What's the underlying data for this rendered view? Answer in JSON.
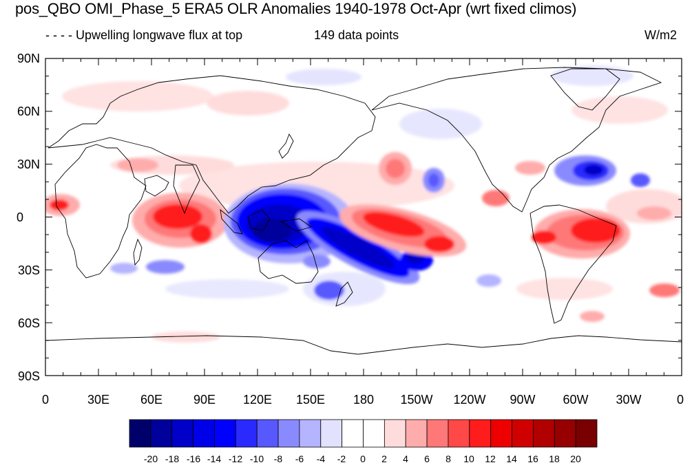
{
  "title": "pos_QBO OMI_Phase_5 ERA5 OLR Anomalies 1940-1978 Oct-Apr (wrt fixed climos)",
  "left_string": "- - - - Upwelling longwave flux at top",
  "center_string": "149 data points",
  "units": "W/m2",
  "y_tick_labels": [
    "90N",
    "60N",
    "30N",
    "0",
    "30S",
    "60S",
    "90S"
  ],
  "x_tick_labels": [
    "0",
    "30E",
    "60E",
    "90E",
    "120E",
    "150E",
    "180",
    "150W",
    "120W",
    "90W",
    "60W",
    "30W",
    "0"
  ],
  "colorbar": {
    "colors": [
      "#00006a",
      "#00009b",
      "#0000c8",
      "#0000e8",
      "#0000ff",
      "#2a2aff",
      "#5858ff",
      "#8a8aff",
      "#b4b4ff",
      "#e2e2ff",
      "#ffffff",
      "#ffffff",
      "#ffdcdc",
      "#ffacac",
      "#ff7878",
      "#ff4848",
      "#ff1c1c",
      "#ee0000",
      "#d00000",
      "#b00000",
      "#960000",
      "#780000"
    ],
    "labels": [
      "-20",
      "-18",
      "-16",
      "-14",
      "-12",
      "-10",
      "-8",
      "-6",
      "-4",
      "-2",
      "0",
      "2",
      "4",
      "6",
      "8",
      "10",
      "12",
      "14",
      "16",
      "18",
      "20"
    ]
  },
  "colors": {
    "strong_negative": "#0000c8",
    "strong_positive": "#ee0000",
    "coastline": "#000000"
  }
}
